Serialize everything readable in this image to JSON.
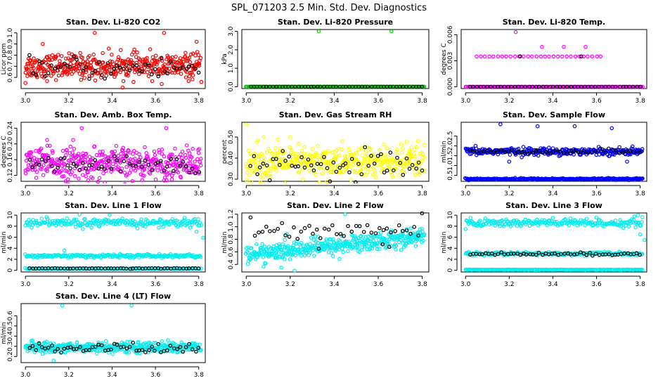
{
  "page": {
    "title": "SPL_071203  2.5 Min. Std. Dev. Diagnostics"
  },
  "chart_data": [
    {
      "type": "scatter",
      "title": "Stan. Dev. Li-820 CO2",
      "xlabel": "",
      "ylabel": "Licor ppm",
      "xlim": [
        2.98,
        3.83
      ],
      "ylim": [
        0.5,
        1.03
      ],
      "xticks": [
        "3.0",
        "3.2",
        "3.4",
        "3.6",
        "3.8"
      ],
      "xtick_values": [
        3.0,
        3.2,
        3.4,
        3.6,
        3.8
      ],
      "yticks": [
        "0.6",
        "0.7",
        "0.8",
        "0.9",
        "1.0"
      ],
      "ytick_values": [
        0.6,
        0.7,
        0.8,
        0.9,
        1.0
      ],
      "series": [
        {
          "name": "main",
          "color": "#ff0000",
          "bands": [
            {
              "x0": 3.0,
              "x1": 3.81,
              "center": 0.7,
              "spread": 0.055,
              "n": 420
            }
          ],
          "outliers": [
            [
              3.08,
              0.9
            ],
            [
              3.32,
              1.0
            ],
            [
              3.64,
              1.0
            ],
            [
              3.79,
              0.92
            ],
            [
              3.0,
              0.55
            ]
          ]
        },
        {
          "name": "secondary",
          "color": "#000000",
          "bands": [
            {
              "x0": 3.02,
              "x1": 3.8,
              "center": 0.68,
              "spread": 0.05,
              "n": 55
            }
          ],
          "outliers": []
        }
      ]
    },
    {
      "type": "scatter",
      "title": "Stan. Dev. Li-820 Pressure",
      "xlabel": "",
      "ylabel": "kPa",
      "xlim": [
        2.98,
        3.83
      ],
      "ylim": [
        -0.1,
        3.1
      ],
      "xticks": [
        "3.0",
        "3.2",
        "3.4",
        "3.6",
        "3.8"
      ],
      "xtick_values": [
        3.0,
        3.2,
        3.4,
        3.6,
        3.8
      ],
      "yticks": [
        "0.0",
        "1.0",
        "2.0",
        "3.0"
      ],
      "ytick_values": [
        0.0,
        1.0,
        2.0,
        3.0
      ],
      "series": [
        {
          "name": "main",
          "color": "#00cc00",
          "bands": [
            {
              "x0": 3.0,
              "x1": 3.81,
              "center": 0.0,
              "spread": 0.0,
              "n": 260
            }
          ],
          "outliers": [
            [
              3.33,
              3.0
            ],
            [
              3.66,
              3.0
            ]
          ]
        },
        {
          "name": "secondary",
          "color": "#000000",
          "bands": [
            {
              "x0": 3.02,
              "x1": 3.8,
              "center": 0.0,
              "spread": 0.0,
              "n": 55
            }
          ],
          "outliers": []
        }
      ]
    },
    {
      "type": "scatter",
      "title": "Stan. Dev. Li-820 Temp.",
      "xlabel": "",
      "ylabel": "degrees C",
      "xlim": [
        2.98,
        3.83
      ],
      "ylim": [
        -0.0002,
        0.0066
      ],
      "xticks": [
        "3.0",
        "3.2",
        "3.4",
        "3.6",
        "3.8"
      ],
      "xtick_values": [
        3.0,
        3.2,
        3.4,
        3.6,
        3.8
      ],
      "yticks": [
        "0.000",
        "0.003",
        "0.006"
      ],
      "ytick_values": [
        0.0,
        0.003,
        0.006
      ],
      "series": [
        {
          "name": "main",
          "color": "#ff00ff",
          "bands": [
            {
              "x0": 3.0,
              "x1": 3.81,
              "center": 0.0,
              "spread": 0.0,
              "n": 260
            },
            {
              "x0": 3.05,
              "x1": 3.62,
              "center": 0.0035,
              "spread": 0.0,
              "n": 30
            }
          ],
          "outliers": [
            [
              3.23,
              0.0063
            ],
            [
              3.35,
              0.0046
            ],
            [
              3.45,
              0.0046
            ],
            [
              3.55,
              0.0046
            ]
          ]
        },
        {
          "name": "secondary",
          "color": "#000000",
          "bands": [
            {
              "x0": 3.02,
              "x1": 3.8,
              "center": 0.0,
              "spread": 0.0,
              "n": 50
            }
          ],
          "outliers": [
            [
              3.25,
              0.0035
            ],
            [
              3.53,
              0.0035
            ]
          ]
        }
      ]
    },
    {
      "type": "scatter",
      "title": "Stan. Dev. Amb. Box Temp.",
      "xlabel": "",
      "ylabel": "degrees C",
      "xlim": [
        2.98,
        3.83
      ],
      "ylim": [
        0.105,
        0.255
      ],
      "xticks": [
        "3.0",
        "3.2",
        "3.4",
        "3.6",
        "3.8"
      ],
      "xtick_values": [
        3.0,
        3.2,
        3.4,
        3.6,
        3.8
      ],
      "yticks": [
        "0.12",
        "0.16",
        "0.20",
        "0.24"
      ],
      "ytick_values": [
        0.12,
        0.16,
        0.2,
        0.24
      ],
      "series": [
        {
          "name": "main",
          "color": "#ff00ff",
          "bands": [
            {
              "x0": 3.0,
              "x1": 3.81,
              "center": 0.15,
              "spread": 0.02,
              "n": 420
            }
          ],
          "outliers": [
            [
              3.26,
              0.24
            ],
            [
              3.65,
              0.24
            ],
            [
              3.1,
              0.21
            ],
            [
              3.22,
              0.21
            ]
          ]
        },
        {
          "name": "secondary",
          "color": "#000000",
          "bands": [
            {
              "x0": 3.02,
              "x1": 3.8,
              "center": 0.145,
              "spread": 0.012,
              "n": 55
            }
          ],
          "outliers": []
        }
      ]
    },
    {
      "type": "scatter",
      "title": "Stan. Dev. Gas Stream RH",
      "xlabel": "",
      "ylabel": "percent",
      "xlim": [
        2.98,
        3.83
      ],
      "ylim": [
        0.29,
        0.57
      ],
      "xticks": [
        "3.0",
        "3.2",
        "3.4",
        "3.6",
        "3.8"
      ],
      "xtick_values": [
        3.0,
        3.2,
        3.4,
        3.6,
        3.8
      ],
      "yticks": [
        "0.30",
        "0.40",
        "0.50"
      ],
      "ytick_values": [
        0.3,
        0.4,
        0.5
      ],
      "series": [
        {
          "name": "main",
          "color": "#ffff00",
          "bands": [
            {
              "x0": 3.0,
              "x1": 3.81,
              "center": 0.38,
              "spread": 0.04,
              "n": 420
            }
          ],
          "outliers": [
            [
              3.0,
              0.56
            ],
            [
              3.08,
              0.5
            ],
            [
              3.2,
              0.5
            ]
          ]
        },
        {
          "name": "secondary",
          "color": "#000000",
          "bands": [
            {
              "x0": 3.02,
              "x1": 3.8,
              "center": 0.36,
              "spread": 0.035,
              "n": 55
            }
          ],
          "outliers": []
        }
      ]
    },
    {
      "type": "scatter",
      "title": "Stan. Dev. Sample Flow",
      "xlabel": "",
      "ylabel": "ml/min",
      "xlim": [
        2.98,
        3.83
      ],
      "ylim": [
        0.2,
        3.2
      ],
      "xticks": [
        "3.0",
        "3.2",
        "3.4",
        "3.6",
        "3.8"
      ],
      "xtick_values": [
        3.0,
        3.2,
        3.4,
        3.6,
        3.8
      ],
      "yticks": [
        "0.5",
        "1.0",
        "1.5",
        "2.0",
        "2.5"
      ],
      "ytick_values": [
        0.5,
        1.0,
        1.5,
        2.0,
        2.5
      ],
      "series": [
        {
          "name": "main",
          "color": "#0000ff",
          "bands": [
            {
              "x0": 3.0,
              "x1": 3.81,
              "center": 1.72,
              "spread": 0.09,
              "n": 320
            },
            {
              "x0": 3.0,
              "x1": 3.81,
              "center": 0.32,
              "spread": 0.02,
              "n": 260
            }
          ],
          "outliers": [
            [
              3.16,
              3.1
            ],
            [
              3.33,
              3.0
            ],
            [
              3.5,
              3.0
            ],
            [
              3.67,
              2.9
            ],
            [
              3.2,
              1.2
            ],
            [
              3.74,
              1.2
            ]
          ]
        },
        {
          "name": "secondary",
          "color": "#000000",
          "bands": [
            {
              "x0": 3.02,
              "x1": 3.8,
              "center": 1.72,
              "spread": 0.06,
              "n": 50
            }
          ],
          "outliers": []
        }
      ]
    },
    {
      "type": "scatter",
      "title": "Stan. Dev. Line 1 Flow",
      "xlabel": "",
      "ylabel": "ml/min",
      "xlim": [
        2.98,
        3.83
      ],
      "ylim": [
        -0.3,
        10.4
      ],
      "xticks": [
        "3.0",
        "3.2",
        "3.4",
        "3.6",
        "3.8"
      ],
      "xtick_values": [
        3.0,
        3.2,
        3.4,
        3.6,
        3.8
      ],
      "yticks": [
        "0",
        "2",
        "4",
        "6",
        "8",
        "10"
      ],
      "ytick_values": [
        0,
        2,
        4,
        6,
        8,
        10
      ],
      "series": [
        {
          "name": "main",
          "color": "#00eeee",
          "bands": [
            {
              "x0": 3.0,
              "x1": 3.81,
              "center": 8.6,
              "spread": 0.4,
              "n": 220
            },
            {
              "x0": 3.0,
              "x1": 3.81,
              "center": 2.6,
              "spread": 0.15,
              "n": 220
            },
            {
              "x0": 3.0,
              "x1": 3.81,
              "center": 0.3,
              "spread": 0.05,
              "n": 150
            }
          ],
          "outliers": [
            [
              3.25,
              10.1
            ],
            [
              3.79,
              7.0
            ],
            [
              3.82,
              5.9
            ],
            [
              3.18,
              3.6
            ]
          ]
        },
        {
          "name": "secondary",
          "color": "#000000",
          "bands": [
            {
              "x0": 3.02,
              "x1": 3.8,
              "center": 0.35,
              "spread": 0.03,
              "n": 55
            }
          ],
          "outliers": []
        }
      ]
    },
    {
      "type": "scatter",
      "title": "Stan. Dev. Line 2 Flow",
      "xlabel": "",
      "ylabel": "ml/min",
      "xlim": [
        2.98,
        3.83
      ],
      "ylim": [
        0.28,
        1.22
      ],
      "xticks": [
        "3.0",
        "3.2",
        "3.4",
        "3.6",
        "3.8"
      ],
      "xtick_values": [
        3.0,
        3.2,
        3.4,
        3.6,
        3.8
      ],
      "yticks": [
        "0.4",
        "0.6",
        "0.8",
        "1.0",
        "1.2"
      ],
      "ytick_values": [
        0.4,
        0.6,
        0.8,
        1.0,
        1.2
      ],
      "series": [
        {
          "name": "main",
          "color": "#00eeee",
          "bands": [
            {
              "x0": 3.0,
              "x1": 3.81,
              "center": 0.55,
              "center_end": 0.85,
              "spread": 0.07,
              "n": 420
            }
          ],
          "outliers": [
            [
              3.16,
              0.35
            ],
            [
              3.22,
              0.3
            ],
            [
              3.45,
              1.2
            ]
          ]
        },
        {
          "name": "secondary",
          "color": "#000000",
          "bands": [
            {
              "x0": 3.02,
              "x1": 3.8,
              "center": 0.95,
              "spread": 0.08,
              "n": 45
            }
          ],
          "outliers": [
            [
              3.33,
              0.65
            ],
            [
              3.62,
              0.72
            ],
            [
              3.65,
              0.68
            ]
          ]
        }
      ]
    },
    {
      "type": "scatter",
      "title": "Stan. Dev. Line 3 Flow",
      "xlabel": "",
      "ylabel": "ml/min",
      "xlim": [
        2.98,
        3.83
      ],
      "ylim": [
        -0.3,
        10.4
      ],
      "xticks": [
        "3.0",
        "3.2",
        "3.4",
        "3.6",
        "3.8"
      ],
      "xtick_values": [
        3.0,
        3.2,
        3.4,
        3.6,
        3.8
      ],
      "yticks": [
        "0",
        "2",
        "4",
        "6",
        "8",
        "10"
      ],
      "ytick_values": [
        0,
        2,
        4,
        6,
        8,
        10
      ],
      "series": [
        {
          "name": "main",
          "color": "#00eeee",
          "bands": [
            {
              "x0": 3.0,
              "x1": 3.81,
              "center": 8.6,
              "spread": 0.4,
              "n": 220
            },
            {
              "x0": 3.0,
              "x1": 3.81,
              "center": 3.0,
              "spread": 0.15,
              "n": 220
            },
            {
              "x0": 3.0,
              "x1": 3.81,
              "center": 0.1,
              "spread": 0.02,
              "n": 220
            }
          ],
          "outliers": [
            [
              3.79,
              10.0
            ],
            [
              3.8,
              6.5
            ],
            [
              3.82,
              5.5
            ]
          ]
        },
        {
          "name": "secondary",
          "color": "#000000",
          "bands": [
            {
              "x0": 3.02,
              "x1": 3.8,
              "center": 2.95,
              "spread": 0.12,
              "n": 55
            }
          ],
          "outliers": []
        }
      ]
    },
    {
      "type": "scatter",
      "title": "Stan. Dev. Line 4 (LT) Flow",
      "xlabel": "",
      "ylabel": "ml/min",
      "xlim": [
        2.98,
        3.83
      ],
      "ylim": [
        0.14,
        0.72
      ],
      "xticks": [
        "3.0",
        "3.2",
        "3.4",
        "3.6",
        "3.8"
      ],
      "xtick_values": [
        3.0,
        3.2,
        3.4,
        3.6,
        3.8
      ],
      "yticks": [
        "0.2",
        "0.3",
        "0.4",
        "0.5",
        "0.6"
      ],
      "ytick_values": [
        0.2,
        0.3,
        0.4,
        0.5,
        0.6
      ],
      "series": [
        {
          "name": "main",
          "color": "#00eeee",
          "bands": [
            {
              "x0": 3.0,
              "x1": 3.81,
              "center": 0.29,
              "spread": 0.025,
              "n": 420
            }
          ],
          "outliers": [
            [
              3.17,
              0.7
            ],
            [
              3.49,
              0.7
            ],
            [
              3.13,
              0.16
            ]
          ]
        },
        {
          "name": "secondary",
          "color": "#000000",
          "bands": [
            {
              "x0": 3.02,
              "x1": 3.8,
              "center": 0.28,
              "spread": 0.025,
              "n": 55
            }
          ],
          "outliers": []
        }
      ]
    }
  ]
}
